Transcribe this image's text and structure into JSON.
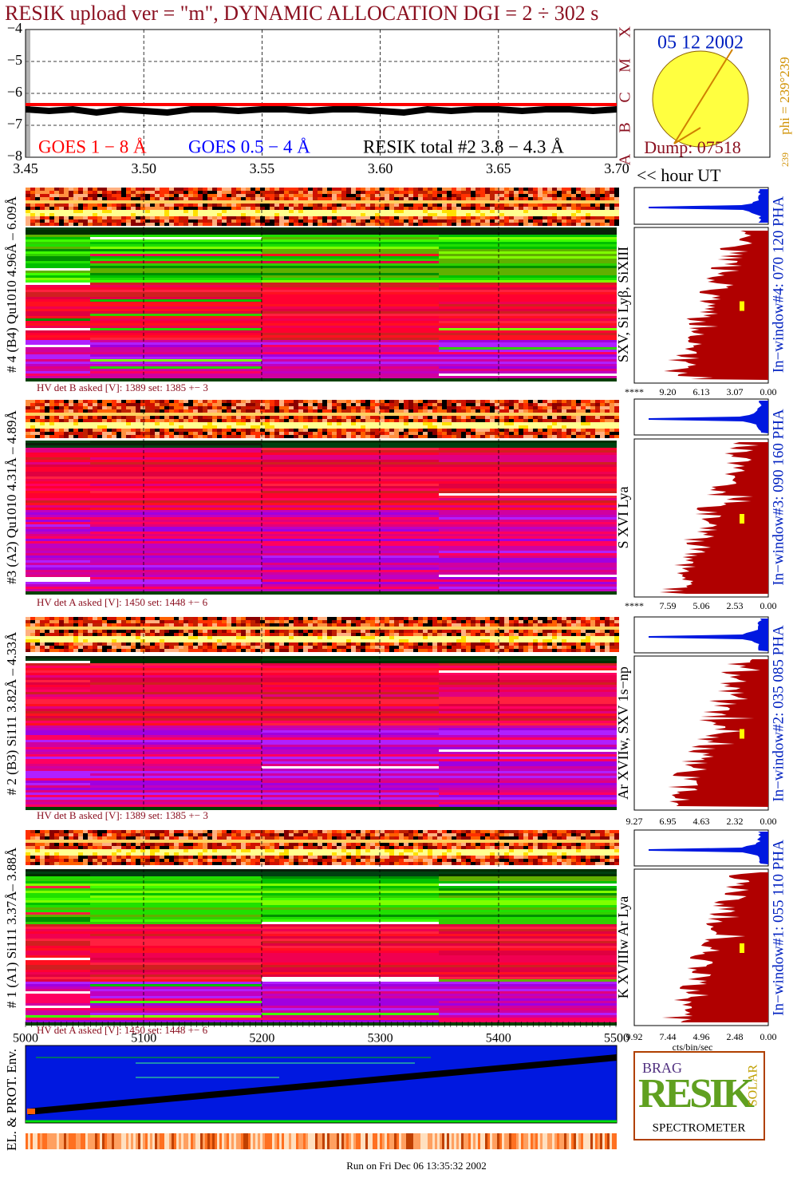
{
  "chart_data": {
    "type": "line",
    "title": "RESIK upload ver = \"m\", DYNAMIC ALLOCATION  DGI =   2 ÷ 302 s",
    "x": [
      3.45,
      3.46,
      3.47,
      3.48,
      3.49,
      3.5,
      3.51,
      3.52,
      3.53,
      3.54,
      3.55,
      3.56,
      3.57,
      3.58,
      3.59,
      3.6,
      3.61,
      3.62,
      3.63,
      3.64,
      3.65,
      3.66,
      3.67,
      3.68,
      3.69,
      3.7
    ],
    "series": [
      {
        "name": "GOES 1 − 8 Å",
        "color": "#ff0000",
        "values": [
          -6.35,
          -6.35,
          -6.35,
          -6.35,
          -6.35,
          -6.35,
          -6.35,
          -6.35,
          -6.35,
          -6.35,
          -6.35,
          -6.35,
          -6.35,
          -6.35,
          -6.35,
          -6.35,
          -6.35,
          -6.35,
          -6.35,
          -6.35,
          -6.35,
          -6.35,
          -6.35,
          -6.35,
          -6.35,
          -6.35
        ]
      },
      {
        "name": "GOES 0.5 − 4 Å",
        "color": "#0000ff",
        "values": [
          null,
          null,
          null,
          null,
          null,
          null,
          null,
          null,
          null,
          null,
          null,
          null,
          null,
          null,
          null,
          null,
          null,
          null,
          null,
          null,
          null,
          null,
          null,
          null,
          null,
          null
        ]
      },
      {
        "name": "RESIK total #2  3.8 − 4.3 Å",
        "color": "#000000",
        "values": [
          -6.5,
          -6.55,
          -6.5,
          -6.6,
          -6.5,
          -6.55,
          -6.6,
          -6.5,
          -6.5,
          -6.55,
          -6.5,
          -6.5,
          -6.55,
          -6.5,
          -6.5,
          -6.55,
          -6.6,
          -6.5,
          -6.55,
          -6.5,
          -6.5,
          -6.55,
          -6.5,
          -6.5,
          -6.55,
          -6.5
        ]
      }
    ],
    "xlim": [
      3.45,
      3.7
    ],
    "xticks": [
      {
        "value": 3.45,
        "label": "3.45"
      },
      {
        "value": 3.5,
        "label": "3.50"
      },
      {
        "value": 3.55,
        "label": "3.55"
      },
      {
        "value": 3.6,
        "label": "3.60"
      },
      {
        "value": 3.65,
        "label": "3.65"
      },
      {
        "value": 3.7,
        "label": "3.70"
      }
    ],
    "x_label": "<< hour UT",
    "ylim": [
      -8,
      -4
    ],
    "yticks": [
      {
        "value": -8,
        "label": "−8"
      },
      {
        "value": -7,
        "label": "−7"
      },
      {
        "value": -6,
        "label": "−6"
      },
      {
        "value": -5,
        "label": "−5"
      },
      {
        "value": -4,
        "label": "−4"
      }
    ],
    "grid": true
  },
  "sun_panel": {
    "date": "05 12 2002",
    "dump": "Dump: 07518",
    "phi": "phi = 239°239",
    "side": "239",
    "letters": [
      "X",
      "M",
      "C",
      "B",
      "A"
    ]
  },
  "panels": [
    {
      "label": "# 4 (B4) Qu1010 4.96Å – 6.09Å",
      "lines": "SXV, Si Lyβ, SiXIII",
      "window": "In−window#4:  070 120 PHA",
      "hv": "HV det B asked [V]:  1389 set:  1385 +−    3",
      "axis": [
        "****",
        "9.20",
        "6.13",
        "3.07",
        "0.00"
      ]
    },
    {
      "label": "#3 (A2) Qu1010  4.31Å – 4.89Å",
      "lines": "S XVI Lya",
      "window": "In−window#3:  090 160 PHA",
      "hv": "HV det A asked [V]:  1450 set:  1448 +−    6",
      "axis": [
        "****",
        "7.59",
        "5.06",
        "2.53",
        "0.00"
      ]
    },
    {
      "label": "# 2 (B3) Si111  3.82Å – 4.33Å",
      "lines": "Ar XVIIw,  SXV 1s−np",
      "window": "In−window#2:  035 085 PHA",
      "hv": "HV det B asked [V]:  1389 set:  1385 +−    3",
      "axis": [
        "9.27",
        "6.95",
        "4.63",
        "2.32",
        "0.00"
      ]
    },
    {
      "label": "# 1 (A1) Si111  3.37Å– 3.88Å",
      "lines": "K XVIIIw  Ar Lya",
      "window": "In−window#1:  055 110 PHA",
      "hv": "HV det A asked [V]:  1450 set:  1448 +−    6",
      "axis": [
        "9.92",
        "7.44",
        "4.96",
        "2.48",
        "0.00"
      ]
    }
  ],
  "hist_unit": "cts/bin/sec",
  "bottom_axis": [
    "5000",
    "5100",
    "5200",
    "5300",
    "5400",
    "5500"
  ],
  "env_label": "EL. & PROT. Env.",
  "logo": {
    "big": "RESIK",
    "side": "SOLAR",
    "top": "BRAG",
    "bottom": "SPECTROMETER"
  },
  "footer": "Run on Fri Dec 06 13:35:32 2002"
}
